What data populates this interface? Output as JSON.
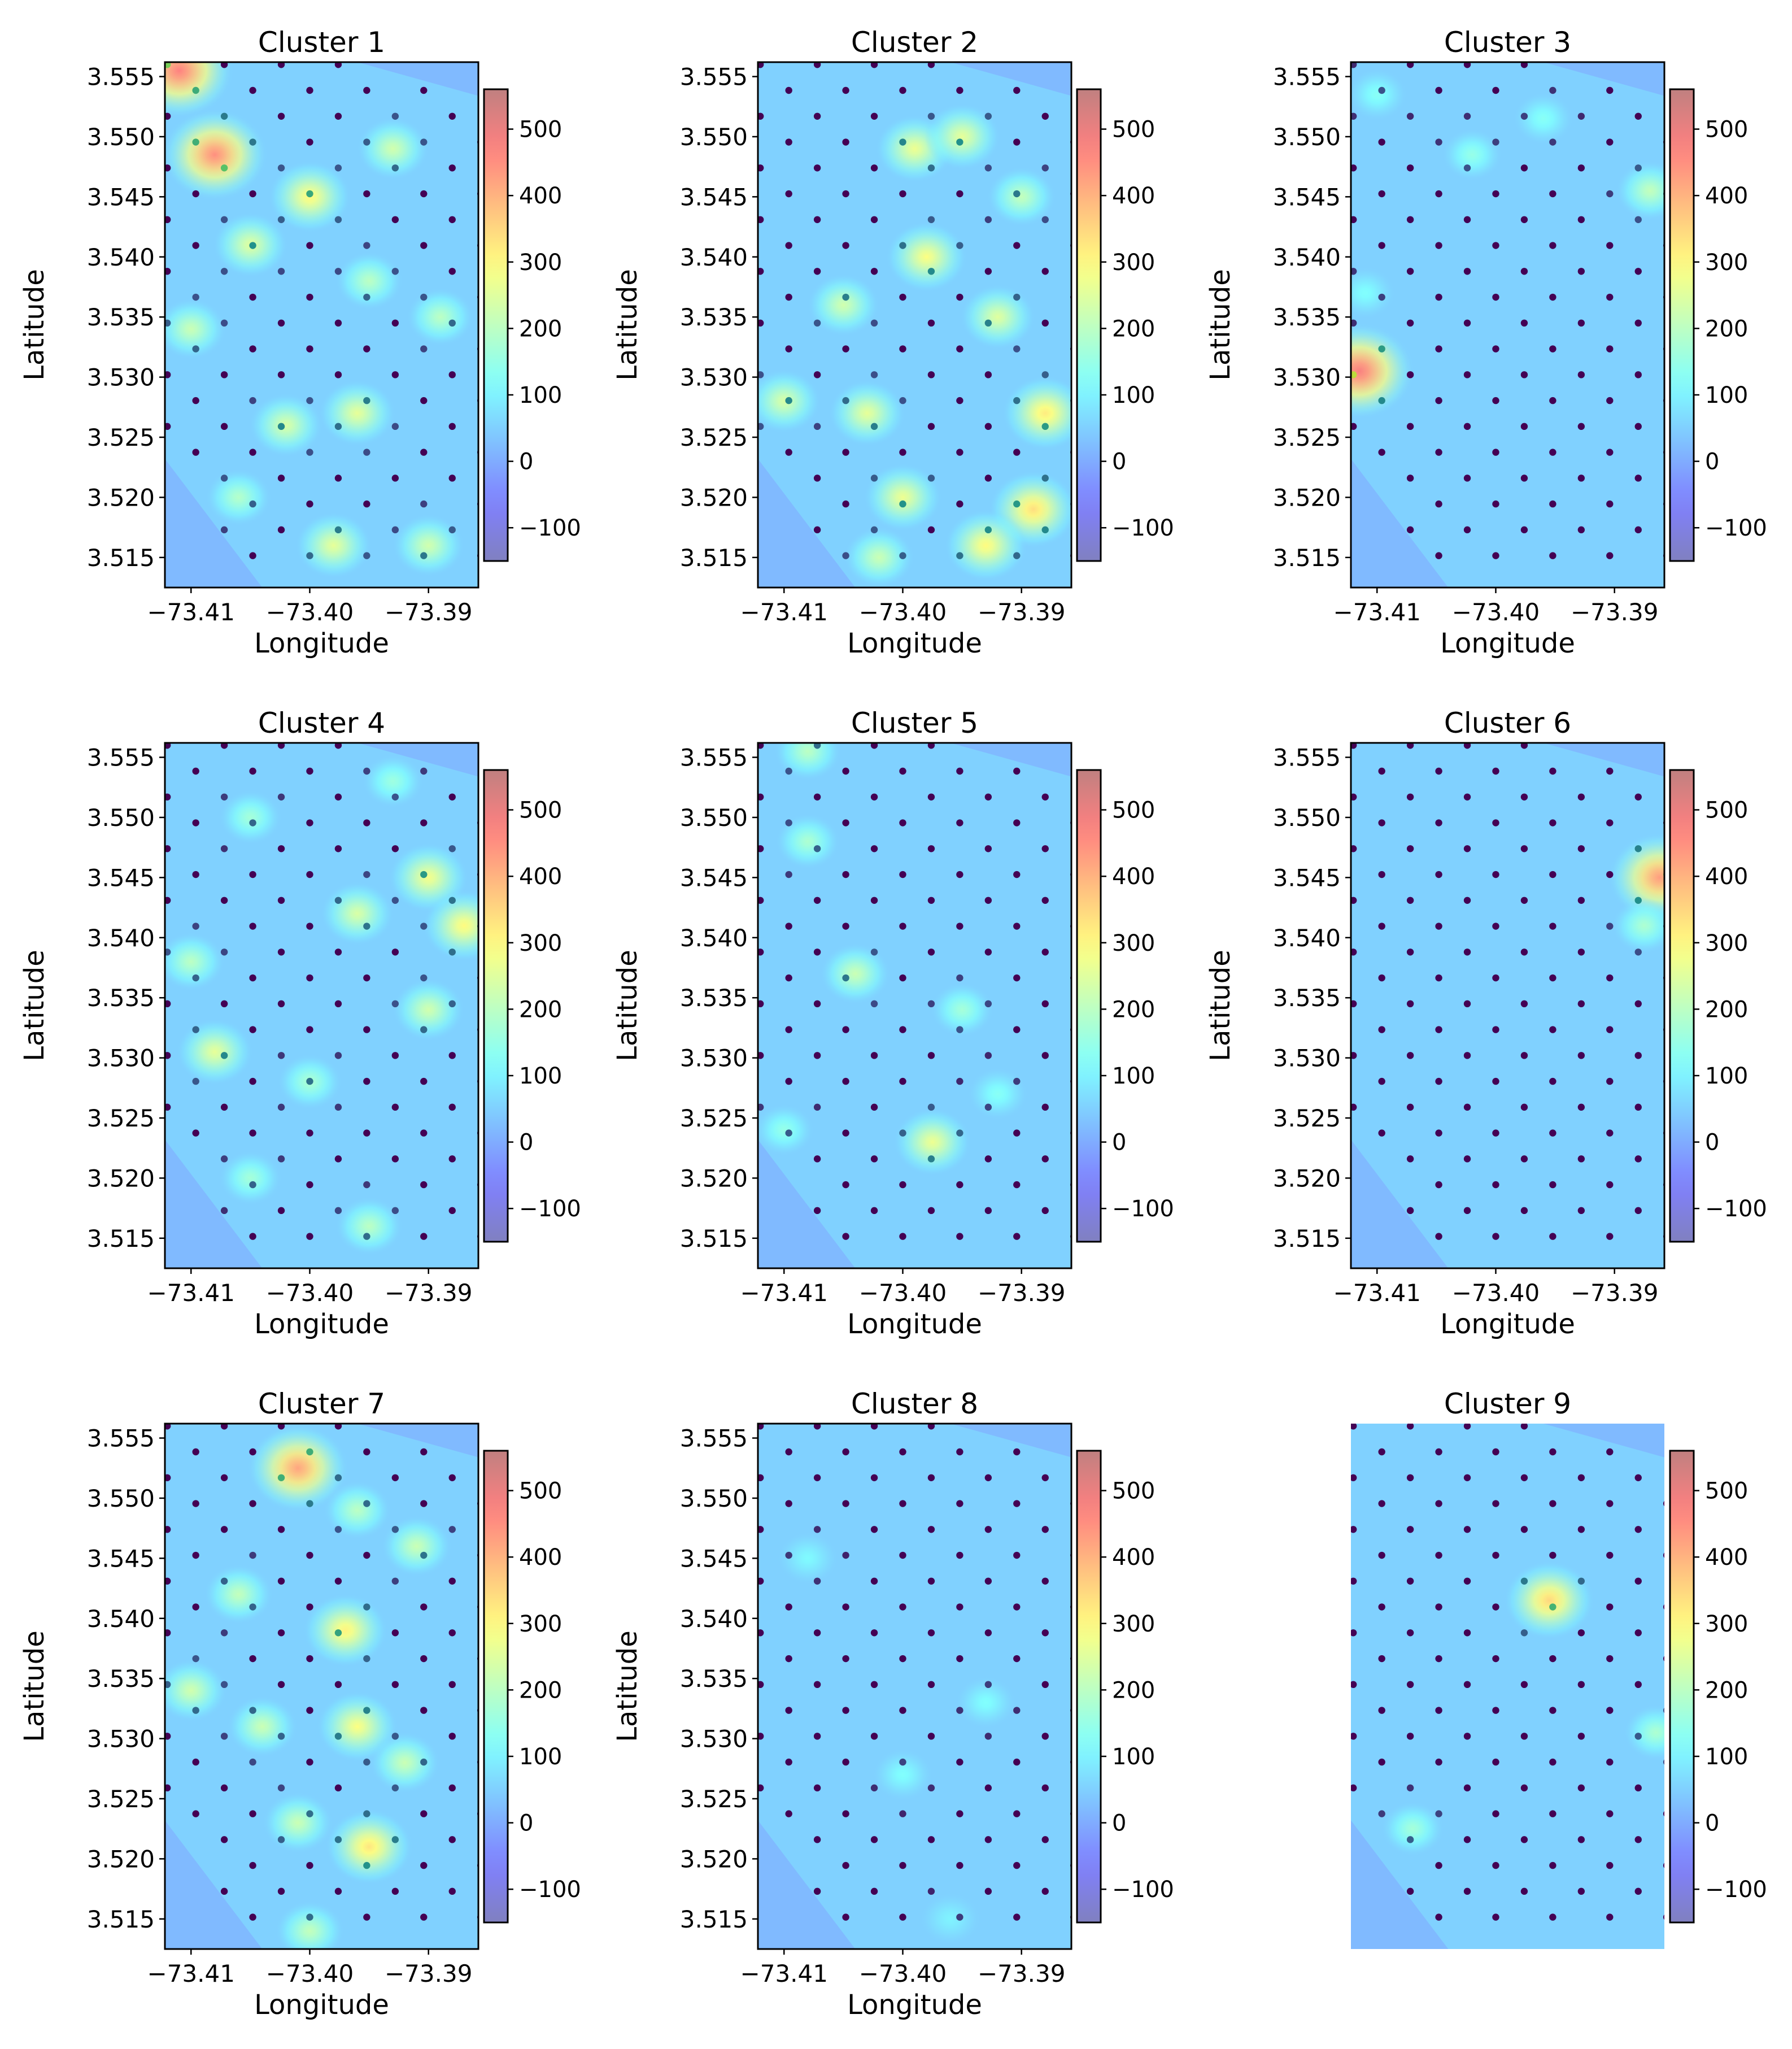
{
  "figure": {
    "xlabel": "Longitude",
    "ylabel": "Latitude",
    "colorbar": {
      "min": -150,
      "max": 560,
      "ticks": [
        -100,
        0,
        100,
        200,
        300,
        400,
        500
      ],
      "tick_labels": [
        "−100",
        "0",
        "100",
        "200",
        "300",
        "400",
        "500"
      ]
    },
    "x_ticks": [
      -73.41,
      -73.4,
      -73.39
    ],
    "x_tick_labels": [
      "−73.41",
      "−73.40",
      "−73.39"
    ],
    "y_ticks": [
      3.515,
      3.52,
      3.525,
      3.53,
      3.535,
      3.54,
      3.545,
      3.55,
      3.555
    ],
    "y_tick_labels": [
      "3.515",
      "3.520",
      "3.525",
      "3.530",
      "3.535",
      "3.540",
      "3.545",
      "3.550",
      "3.555"
    ],
    "xlim": [
      -73.4122,
      -73.3858
    ],
    "ylim": [
      3.5125,
      3.5562
    ],
    "colormap": "jet (alpha 0.5 heatmap over sample points)"
  },
  "chart_data": [
    {
      "type": "heatmap",
      "title": "Cluster 1",
      "show_axes": true,
      "hotspots": [
        {
          "lon": -73.411,
          "lat": 3.5555,
          "value": 470
        },
        {
          "lon": -73.408,
          "lat": 3.5485,
          "value": 450
        },
        {
          "lon": -73.4,
          "lat": 3.545,
          "value": 300
        },
        {
          "lon": -73.405,
          "lat": 3.541,
          "value": 250
        },
        {
          "lon": -73.393,
          "lat": 3.549,
          "value": 230
        },
        {
          "lon": -73.41,
          "lat": 3.534,
          "value": 220
        },
        {
          "lon": -73.396,
          "lat": 3.527,
          "value": 260
        },
        {
          "lon": -73.402,
          "lat": 3.526,
          "value": 240
        },
        {
          "lon": -73.398,
          "lat": 3.516,
          "value": 260
        },
        {
          "lon": -73.39,
          "lat": 3.516,
          "value": 230
        },
        {
          "lon": -73.395,
          "lat": 3.538,
          "value": 200
        },
        {
          "lon": -73.406,
          "lat": 3.52,
          "value": 190
        },
        {
          "lon": -73.389,
          "lat": 3.535,
          "value": 200
        }
      ]
    },
    {
      "type": "heatmap",
      "title": "Cluster 2",
      "show_axes": true,
      "hotspots": [
        {
          "lon": -73.399,
          "lat": 3.549,
          "value": 270
        },
        {
          "lon": -73.395,
          "lat": 3.55,
          "value": 260
        },
        {
          "lon": -73.398,
          "lat": 3.54,
          "value": 290
        },
        {
          "lon": -73.388,
          "lat": 3.527,
          "value": 320
        },
        {
          "lon": -73.389,
          "lat": 3.519,
          "value": 340
        },
        {
          "lon": -73.393,
          "lat": 3.516,
          "value": 300
        },
        {
          "lon": -73.4,
          "lat": 3.52,
          "value": 270
        },
        {
          "lon": -73.403,
          "lat": 3.527,
          "value": 260
        },
        {
          "lon": -73.41,
          "lat": 3.528,
          "value": 240
        },
        {
          "lon": -73.392,
          "lat": 3.535,
          "value": 250
        },
        {
          "lon": -73.405,
          "lat": 3.536,
          "value": 230
        },
        {
          "lon": -73.402,
          "lat": 3.515,
          "value": 220
        },
        {
          "lon": -73.39,
          "lat": 3.545,
          "value": 210
        }
      ]
    },
    {
      "type": "heatmap",
      "title": "Cluster 3",
      "show_axes": true,
      "hotspots": [
        {
          "lon": -73.4115,
          "lat": 3.5305,
          "value": 480
        },
        {
          "lon": -73.387,
          "lat": 3.5455,
          "value": 210
        },
        {
          "lon": -73.402,
          "lat": 3.5485,
          "value": 150
        },
        {
          "lon": -73.396,
          "lat": 3.5515,
          "value": 130
        },
        {
          "lon": -73.41,
          "lat": 3.5535,
          "value": 130
        },
        {
          "lon": -73.411,
          "lat": 3.537,
          "value": 120
        }
      ]
    },
    {
      "type": "heatmap",
      "title": "Cluster 4",
      "show_axes": true,
      "hotspots": [
        {
          "lon": -73.39,
          "lat": 3.545,
          "value": 280
        },
        {
          "lon": -73.387,
          "lat": 3.541,
          "value": 300
        },
        {
          "lon": -73.408,
          "lat": 3.5305,
          "value": 260
        },
        {
          "lon": -73.396,
          "lat": 3.542,
          "value": 240
        },
        {
          "lon": -73.39,
          "lat": 3.534,
          "value": 230
        },
        {
          "lon": -73.41,
          "lat": 3.538,
          "value": 200
        },
        {
          "lon": -73.4,
          "lat": 3.528,
          "value": 180
        },
        {
          "lon": -73.395,
          "lat": 3.516,
          "value": 200
        },
        {
          "lon": -73.405,
          "lat": 3.55,
          "value": 170
        },
        {
          "lon": -73.393,
          "lat": 3.553,
          "value": 160
        },
        {
          "lon": -73.405,
          "lat": 3.52,
          "value": 170
        }
      ]
    },
    {
      "type": "heatmap",
      "title": "Cluster 5",
      "show_axes": true,
      "hotspots": [
        {
          "lon": -73.404,
          "lat": 3.537,
          "value": 220
        },
        {
          "lon": -73.3975,
          "lat": 3.523,
          "value": 270
        },
        {
          "lon": -73.395,
          "lat": 3.534,
          "value": 170
        },
        {
          "lon": -73.408,
          "lat": 3.548,
          "value": 180
        },
        {
          "lon": -73.408,
          "lat": 3.5555,
          "value": 200
        },
        {
          "lon": -73.41,
          "lat": 3.524,
          "value": 150
        },
        {
          "lon": -73.392,
          "lat": 3.527,
          "value": 130
        }
      ]
    },
    {
      "type": "heatmap",
      "title": "Cluster 6",
      "show_axes": true,
      "hotspots": [
        {
          "lon": -73.3862,
          "lat": 3.545,
          "value": 430
        },
        {
          "lon": -73.3875,
          "lat": 3.541,
          "value": 180
        }
      ]
    },
    {
      "type": "heatmap",
      "title": "Cluster 7",
      "show_axes": true,
      "hotspots": [
        {
          "lon": -73.401,
          "lat": 3.5525,
          "value": 420
        },
        {
          "lon": -73.397,
          "lat": 3.539,
          "value": 310
        },
        {
          "lon": -73.396,
          "lat": 3.531,
          "value": 290
        },
        {
          "lon": -73.395,
          "lat": 3.521,
          "value": 330
        },
        {
          "lon": -73.41,
          "lat": 3.534,
          "value": 230
        },
        {
          "lon": -73.404,
          "lat": 3.531,
          "value": 220
        },
        {
          "lon": -73.401,
          "lat": 3.523,
          "value": 220
        },
        {
          "lon": -73.391,
          "lat": 3.546,
          "value": 220
        },
        {
          "lon": -73.406,
          "lat": 3.542,
          "value": 210
        },
        {
          "lon": -73.396,
          "lat": 3.549,
          "value": 200
        },
        {
          "lon": -73.392,
          "lat": 3.528,
          "value": 220
        },
        {
          "lon": -73.4,
          "lat": 3.514,
          "value": 210
        }
      ]
    },
    {
      "type": "heatmap",
      "title": "Cluster 8",
      "show_axes": true,
      "hotspots": [
        {
          "lon": -73.393,
          "lat": 3.533,
          "value": 120
        },
        {
          "lon": -73.4,
          "lat": 3.527,
          "value": 120
        },
        {
          "lon": -73.408,
          "lat": 3.545,
          "value": 110
        },
        {
          "lon": -73.396,
          "lat": 3.515,
          "value": 100
        }
      ]
    },
    {
      "type": "heatmap",
      "title": "Cluster 9",
      "show_axes": false,
      "hotspots": [
        {
          "lon": -73.3955,
          "lat": 3.5415,
          "value": 350
        },
        {
          "lon": -73.3865,
          "lat": 3.5305,
          "value": 180
        },
        {
          "lon": -73.407,
          "lat": 3.5225,
          "value": 170
        }
      ]
    }
  ]
}
